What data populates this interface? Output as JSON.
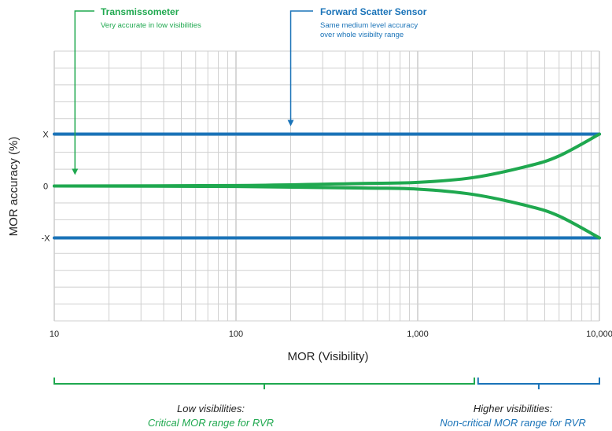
{
  "chart_data": {
    "type": "line",
    "xlabel": "MOR (Visibility)",
    "ylabel": "MOR accuracy (%)",
    "x_scale": "log",
    "xlim": [
      10,
      10000
    ],
    "x_ticks": [
      {
        "value": 10,
        "label": "10"
      },
      {
        "value": 100,
        "label": "100"
      },
      {
        "value": 1000,
        "label": "1,000"
      },
      {
        "value": 10000,
        "label": "10,000"
      }
    ],
    "y_ticks": [
      {
        "value": 1,
        "label": "X"
      },
      {
        "value": 0,
        "label": "0"
      },
      {
        "value": -1,
        "label": "-X"
      }
    ],
    "ylim": [
      -2.6,
      2.6
    ],
    "grid": true,
    "series": [
      {
        "color": "#1a73b8",
        "x": [
          10,
          10000
        ],
        "y": [
          1,
          1
        ]
      },
      {
        "color": "#1a73b8",
        "x": [
          10,
          10000
        ],
        "y": [
          -1,
          -1
        ]
      },
      {
        "color": "#1fa84f",
        "x": [
          10,
          100,
          500,
          1000,
          2000,
          4000,
          6000,
          10000
        ],
        "y": [
          0,
          0.01,
          0.05,
          0.07,
          0.16,
          0.38,
          0.58,
          1
        ]
      },
      {
        "color": "#1fa84f",
        "x": [
          10,
          100,
          500,
          1000,
          2000,
          4000,
          6000,
          10000
        ],
        "y": [
          0,
          -0.01,
          -0.04,
          -0.06,
          -0.16,
          -0.38,
          -0.58,
          -1
        ]
      }
    ],
    "annotations": {
      "transmissometer": {
        "title": "Transmissometer",
        "subtitle": "Very accurate in low visibilities",
        "color": "#1fa84f",
        "x": 13,
        "y": 0
      },
      "forward_scatter": {
        "title": "Forward Scatter Sensor",
        "subtitle_lines": [
          "Same medium level accuracy",
          "over whole visibilty range"
        ],
        "color": "#1a73b8",
        "x": 200,
        "y": 1
      }
    },
    "ranges": {
      "low": {
        "title": "Low visibilities:",
        "subtitle": "Critical MOR range for RVR",
        "from": 10,
        "to": 2050,
        "color": "#1fa84f"
      },
      "high": {
        "title": "Higher visibilities:",
        "subtitle": "Non-critical MOR range for RVR",
        "from": 2150,
        "to": 10000,
        "color": "#1a73b8"
      }
    }
  }
}
